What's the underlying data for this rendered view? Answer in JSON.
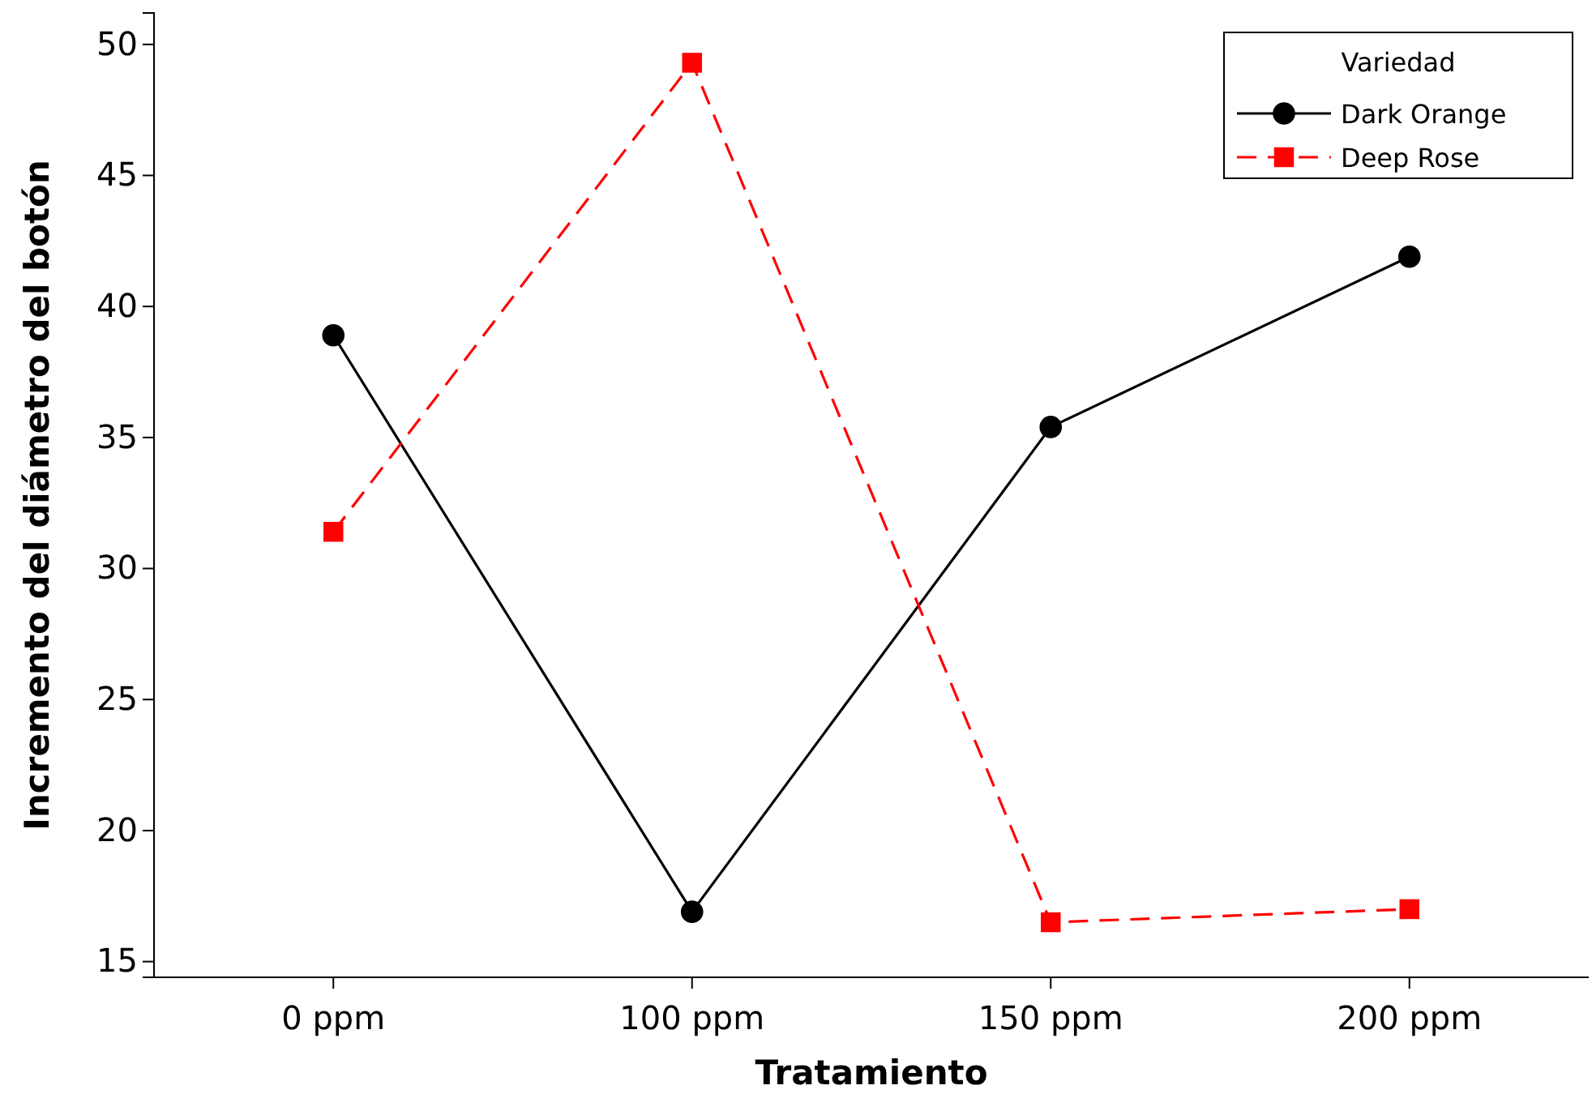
{
  "chart_data": {
    "type": "line",
    "xlabel": "Tratamiento",
    "ylabel": "Incremento del diámetro del botón",
    "legend_title": "Variedad",
    "categories": [
      "0 ppm",
      "100 ppm",
      "150 ppm",
      "200 ppm"
    ],
    "series": [
      {
        "name": "Dark Orange",
        "color": "#000000",
        "marker": "circle",
        "line_style": "solid",
        "values": [
          38.9,
          16.9,
          35.4,
          41.9
        ]
      },
      {
        "name": "Deep Rose",
        "color": "#ff0000",
        "marker": "square",
        "line_style": "dashed",
        "values": [
          31.4,
          49.3,
          16.5,
          17.0
        ]
      }
    ],
    "ylim": [
      14.4,
      51.2
    ],
    "yticks": [
      15,
      20,
      25,
      30,
      35,
      40,
      45,
      50
    ],
    "grid": false,
    "legend": "top right"
  }
}
